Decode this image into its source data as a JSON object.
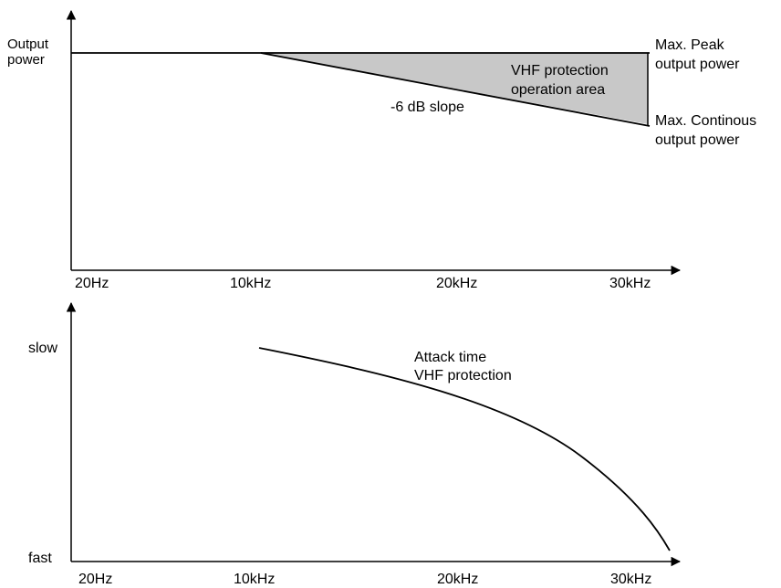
{
  "chart_data": [
    {
      "type": "line",
      "ylabel_lines": [
        "Output",
        "power"
      ],
      "xticks": [
        "20Hz",
        "10kHz",
        "20kHz",
        "30kHz"
      ],
      "series": [
        {
          "x": [
            0,
            10,
            30
          ],
          "y": [
            0,
            0,
            0
          ]
        },
        {
          "x": [
            10,
            30
          ],
          "y": [
            0,
            -6
          ]
        }
      ],
      "shaded_region_label": [
        "VHF protection",
        "operation area"
      ],
      "annotations": {
        "slope": "-6 dB slope",
        "max_peak": [
          "Max. Peak",
          "output power"
        ],
        "max_continuous": [
          "Max. Continous",
          "output power"
        ]
      },
      "grid": false,
      "legend": "none"
    },
    {
      "type": "line",
      "yticks": [
        "slow",
        "fast"
      ],
      "xticks": [
        "20Hz",
        "10kHz",
        "20kHz",
        "30kHz"
      ],
      "series": [
        {
          "x": [
            10,
            15,
            20,
            25,
            28,
            30,
            32
          ],
          "y": [
            1.0,
            0.95,
            0.85,
            0.68,
            0.5,
            0.3,
            0.0
          ]
        }
      ],
      "annotation": [
        "Attack time",
        "VHF protection"
      ],
      "grid": false,
      "legend": "none"
    }
  ]
}
